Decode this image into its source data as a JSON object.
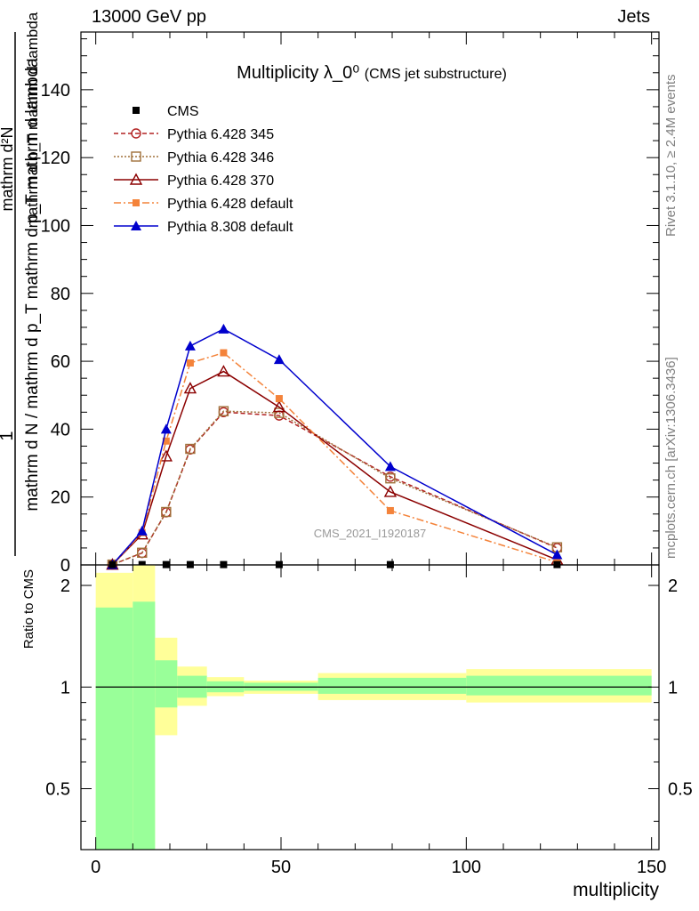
{
  "header": {
    "left": "13000 GeV pp",
    "right": "Jets"
  },
  "side_labels": {
    "rivet": "Rivet 3.1.10, ≥ 2.4M events",
    "mcplots": "mcplots.cern.ch [arXiv:1306.3436]"
  },
  "chart_data": [
    {
      "type": "line",
      "title": "Multiplicity λ_0⁰",
      "subtitle": "(CMS jet substructure)",
      "analysis_label": "CMS_2021_I1920187",
      "ylabel": {
        "numerator": "1",
        "denominator": "mathrm d N / mathrm d p_T mathrm d p_T mathrm d lambda",
        "right_numerator": "mathrm d²N",
        "right_denominator": "mathrm d p_T mathrm d lambda"
      },
      "ylim": [
        0,
        157
      ],
      "yticks": [
        0,
        20,
        40,
        60,
        80,
        100,
        120,
        140
      ],
      "xlim": [
        -4,
        152
      ],
      "legend_position": "top-left",
      "series": [
        {
          "name": "CMS",
          "color": "#000000",
          "marker": "filled-square",
          "line": "none",
          "x": [
            4.5,
            12.5,
            19,
            25.5,
            34.5,
            49.5,
            79.5,
            124.5
          ],
          "y": [
            0.1,
            0.1,
            0.1,
            0.1,
            0.1,
            0.1,
            0.1,
            0.1
          ]
        },
        {
          "name": "Pythia 6.428 345",
          "color": "#b22222",
          "marker": "open-circle",
          "line": "dashed",
          "x": [
            4.5,
            12.5,
            19,
            25.5,
            34.5,
            49.5,
            79.5,
            124.5
          ],
          "y": [
            0.1,
            3.5,
            15.5,
            34,
            45,
            44,
            26,
            5
          ]
        },
        {
          "name": "Pythia 6.428 346",
          "color": "#a0703a",
          "marker": "open-square",
          "line": "dotted",
          "x": [
            4.5,
            12.5,
            19,
            25.5,
            34.5,
            49.5,
            79.5,
            124.5
          ],
          "y": [
            0.1,
            3.6,
            15.6,
            34.2,
            45.3,
            44.8,
            25.5,
            5.2
          ]
        },
        {
          "name": "Pythia 6.428 370",
          "color": "#8b0000",
          "marker": "open-triangle",
          "line": "solid",
          "x": [
            4.5,
            12.5,
            19,
            25.5,
            34.5,
            49.5,
            79.5,
            124.5
          ],
          "y": [
            0.1,
            9,
            32,
            52,
            57,
            46.5,
            21.5,
            1.5
          ]
        },
        {
          "name": "Pythia 6.428 default",
          "color": "#f4833a",
          "marker": "filled-square",
          "line": "dashdot",
          "x": [
            4.5,
            12.5,
            19,
            25.5,
            34.5,
            49.5,
            79.5,
            124.5
          ],
          "y": [
            0.1,
            9.5,
            36.5,
            59.5,
            62.5,
            49,
            16,
            0.8
          ]
        },
        {
          "name": "Pythia 8.308 default",
          "color": "#0000cd",
          "marker": "filled-triangle",
          "line": "solid",
          "x": [
            4.5,
            12.5,
            19,
            25.5,
            34.5,
            49.5,
            79.5,
            124.5
          ],
          "y": [
            0.1,
            10,
            40,
            64.5,
            69.5,
            60.5,
            29,
            3
          ]
        }
      ]
    },
    {
      "type": "area",
      "ylabel": "Ratio to CMS",
      "xlabel": "multiplicity",
      "xlim": [
        -4,
        152
      ],
      "xticks": [
        0,
        50,
        100,
        150
      ],
      "ylim": [
        0.33,
        2.3
      ],
      "yticks": [
        0.5,
        1,
        2
      ],
      "ytick_labels": [
        "0.5",
        "1",
        "2"
      ],
      "reference_line": 1,
      "band_colors": {
        "outer": "#ffff99",
        "inner": "#99ff99"
      },
      "bins": [
        {
          "x0": 0,
          "x1": 10,
          "outer_lo": 0.33,
          "outer_hi": 2.18,
          "inner_lo": 0.33,
          "inner_hi": 1.72
        },
        {
          "x0": 10,
          "x1": 16,
          "outer_lo": 0.33,
          "outer_hi": 2.3,
          "inner_lo": 0.33,
          "inner_hi": 1.79
        },
        {
          "x0": 16,
          "x1": 22,
          "outer_lo": 0.72,
          "outer_hi": 1.4,
          "inner_lo": 0.87,
          "inner_hi": 1.2
        },
        {
          "x0": 22,
          "x1": 30,
          "outer_lo": 0.88,
          "outer_hi": 1.15,
          "inner_lo": 0.93,
          "inner_hi": 1.08
        },
        {
          "x0": 30,
          "x1": 40,
          "outer_lo": 0.94,
          "outer_hi": 1.07,
          "inner_lo": 0.965,
          "inner_hi": 1.04
        },
        {
          "x0": 40,
          "x1": 60,
          "outer_lo": 0.955,
          "outer_hi": 1.045,
          "inner_lo": 0.975,
          "inner_hi": 1.03
        },
        {
          "x0": 60,
          "x1": 100,
          "outer_lo": 0.915,
          "outer_hi": 1.1,
          "inner_lo": 0.955,
          "inner_hi": 1.065
        },
        {
          "x0": 100,
          "x1": 150,
          "outer_lo": 0.9,
          "outer_hi": 1.13,
          "inner_lo": 0.945,
          "inner_hi": 1.08
        }
      ]
    }
  ]
}
